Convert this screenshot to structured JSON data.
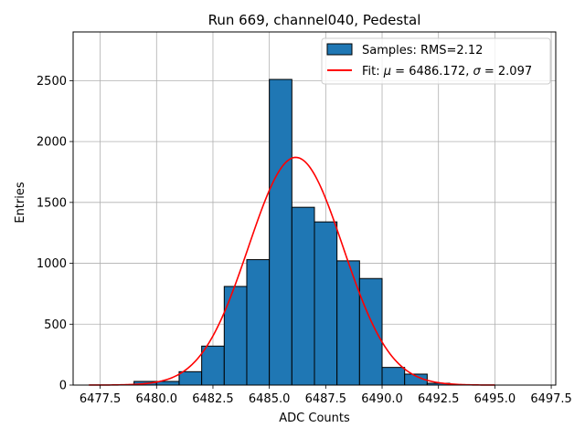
{
  "chart_data": {
    "type": "bar",
    "title": "Run 669, channel040, Pedestal",
    "xlabel": "ADC Counts",
    "ylabel": "Entries",
    "xlim": [
      6476.3,
      6497.7
    ],
    "ylim": [
      0,
      2900
    ],
    "xticks": [
      6477.5,
      6480.0,
      6482.5,
      6485.0,
      6487.5,
      6490.0,
      6492.5,
      6495.0,
      6497.5
    ],
    "xtick_labels": [
      "6477.5",
      "6480.0",
      "6482.5",
      "6485.0",
      "6487.5",
      "6490.0",
      "6492.5",
      "6495.0",
      "6497.5"
    ],
    "yticks": [
      0,
      500,
      1000,
      1500,
      2000,
      2500
    ],
    "ytick_labels": [
      "0",
      "500",
      "1000",
      "1500",
      "2000",
      "2500"
    ],
    "grid": true,
    "legend_position": "top-right",
    "histogram": {
      "name": "Samples: RMS=2.12",
      "color": "#1f77b4",
      "edgecolor": "#000000",
      "bins": [
        {
          "left": 6479.0,
          "right": 6480.0,
          "count": 30
        },
        {
          "left": 6480.0,
          "right": 6481.0,
          "count": 30
        },
        {
          "left": 6481.0,
          "right": 6482.0,
          "count": 110
        },
        {
          "left": 6482.0,
          "right": 6483.0,
          "count": 320
        },
        {
          "left": 6483.0,
          "right": 6484.0,
          "count": 810
        },
        {
          "left": 6484.0,
          "right": 6485.0,
          "count": 1030
        },
        {
          "left": 6485.0,
          "right": 6486.0,
          "count": 2510
        },
        {
          "left": 6486.0,
          "right": 6487.0,
          "count": 1460
        },
        {
          "left": 6487.0,
          "right": 6488.0,
          "count": 1340
        },
        {
          "left": 6488.0,
          "right": 6489.0,
          "count": 1020
        },
        {
          "left": 6489.0,
          "right": 6490.0,
          "count": 875
        },
        {
          "left": 6490.0,
          "right": 6491.0,
          "count": 145
        },
        {
          "left": 6491.0,
          "right": 6492.0,
          "count": 90
        },
        {
          "left": 6492.0,
          "right": 6493.0,
          "count": 15
        }
      ]
    },
    "fit": {
      "name_prefix": "Fit: ",
      "mu_symbol": "μ",
      "sigma_symbol": "σ",
      "mu_text": " = 6486.172, ",
      "sigma_text": " = 2.097",
      "color": "#ff0000",
      "mu": 6486.172,
      "sigma": 2.097,
      "amplitude": 1870,
      "x_range": [
        6477.0,
        6495.0
      ]
    }
  }
}
